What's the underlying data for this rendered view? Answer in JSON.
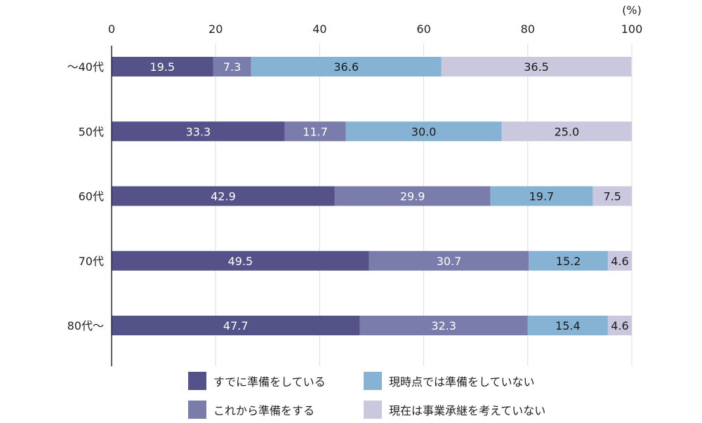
{
  "chart_data": {
    "type": "bar",
    "orientation": "horizontal",
    "stacked": true,
    "unit_label": "(%)",
    "xlim": [
      0,
      100
    ],
    "x_ticks": [
      "0",
      "20",
      "40",
      "60",
      "80",
      "100"
    ],
    "categories": [
      "〜40代",
      "50代",
      "60代",
      "70代",
      "80代〜"
    ],
    "series": [
      {
        "name": "すでに準備をしている",
        "color": "#55528A",
        "label_color": "#ffffff",
        "values": [
          19.5,
          33.3,
          42.9,
          49.5,
          47.7
        ]
      },
      {
        "name": "これから準備をする",
        "color": "#7A7DAB",
        "label_color": "#ffffff",
        "values": [
          7.3,
          11.7,
          29.9,
          30.7,
          32.3
        ]
      },
      {
        "name": "現時点では準備をしていない",
        "color": "#86B3D4",
        "label_color": "#1a1a1a",
        "values": [
          36.6,
          30.0,
          19.7,
          15.2,
          15.4
        ]
      },
      {
        "name": "現在は事業承継を考えていない",
        "color": "#C9C8DF",
        "label_color": "#1a1a1a",
        "values": [
          36.5,
          25.0,
          7.5,
          4.6,
          4.6
        ]
      }
    ],
    "grid": true,
    "legend_position": "bottom"
  }
}
